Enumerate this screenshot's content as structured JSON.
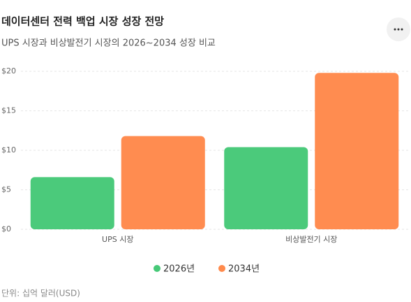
{
  "chart_data": {
    "type": "bar",
    "title": "데이터센터 전력 백업 시장 성장 전망",
    "subtitle": "UPS 시장과 비상발전기 시장의 2026~2034 성장 비교",
    "categories": [
      "UPS 시장",
      "비상발전기 시장"
    ],
    "series": [
      {
        "name": "2026년",
        "color": "#47c978",
        "values": [
          6.6,
          10.4
        ]
      },
      {
        "name": "2034년",
        "color": "#ff8a4c",
        "values": [
          11.8,
          19.8
        ]
      }
    ],
    "ylim": [
      0,
      20
    ],
    "yticks": [
      {
        "value": 0,
        "label": "$0"
      },
      {
        "value": 5,
        "label": "$5"
      },
      {
        "value": 10,
        "label": "$10"
      },
      {
        "value": 15,
        "label": "$15"
      },
      {
        "value": 20,
        "label": "$20"
      }
    ],
    "grid": true,
    "legend": "bottom",
    "note": "단위: 십억 달러(USD)"
  }
}
